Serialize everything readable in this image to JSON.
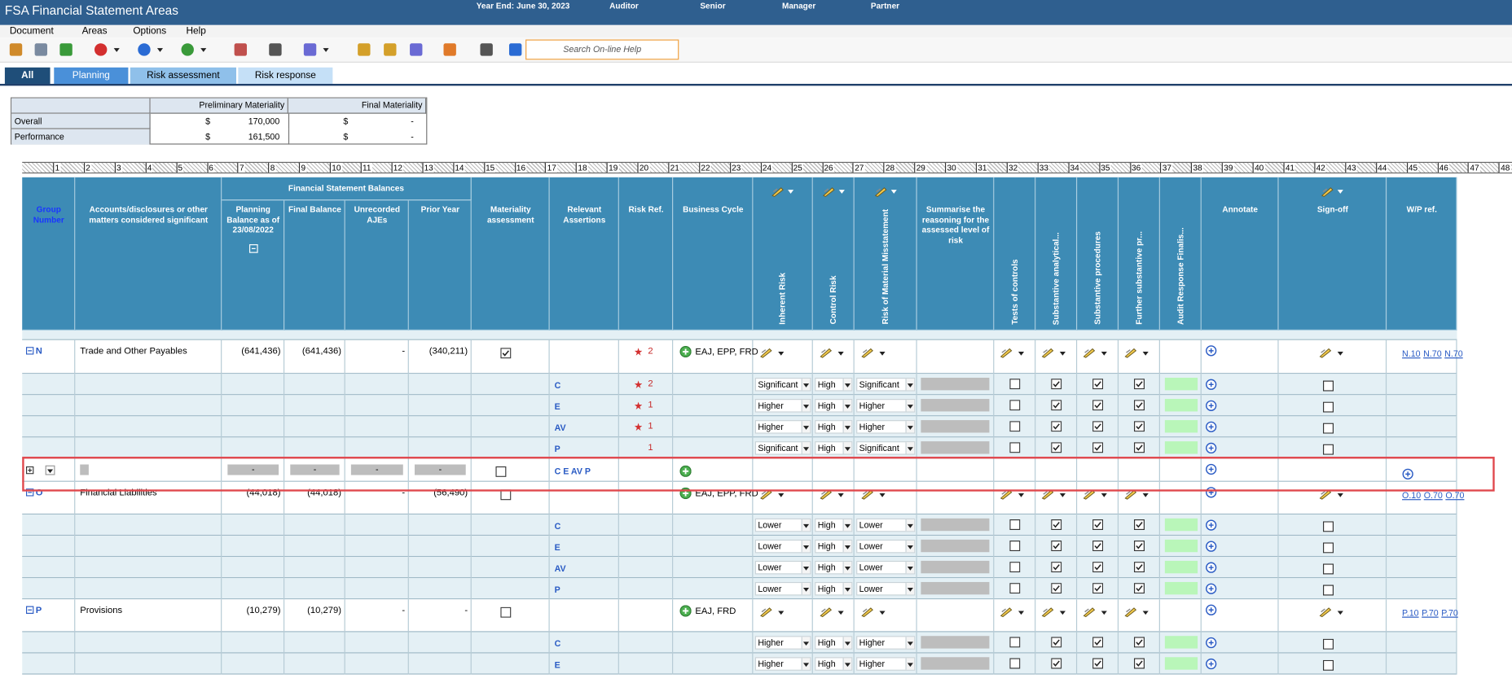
{
  "header": {
    "title": "FSA Financial Statement Areas",
    "fields": [
      "Year End: June 30, 2023",
      "Auditor",
      "Senior",
      "Manager",
      "Partner"
    ]
  },
  "menu": [
    "Document",
    "Areas",
    "Options",
    "Help"
  ],
  "search_placeholder": "Search On-line Help",
  "tabs": [
    "All",
    "Planning",
    "Risk assessment",
    "Risk response"
  ],
  "materiality": {
    "columns": [
      "Preliminary Materiality",
      "Final Materiality"
    ],
    "rows": [
      {
        "label": "Overall",
        "preliminary": [
          "$",
          "170,000"
        ],
        "final": [
          "$",
          "-"
        ]
      },
      {
        "label": "Performance",
        "preliminary": [
          "$",
          "161,500"
        ],
        "final": [
          "$",
          "-"
        ]
      }
    ]
  },
  "ruler": [
    1,
    2,
    3,
    4,
    5,
    6,
    7,
    8,
    9,
    10,
    11,
    12,
    13,
    14,
    15,
    16,
    17,
    18,
    19,
    20,
    21,
    22,
    23,
    24,
    25,
    26,
    27,
    28,
    29,
    30,
    31,
    32,
    33,
    34,
    35,
    36,
    37,
    38,
    39,
    40,
    41,
    42,
    43,
    44,
    45,
    46,
    47,
    48
  ],
  "table": {
    "group_header": "Financial Statement Balances",
    "columns": [
      {
        "label": "Group Number"
      },
      {
        "label": "Accounts/disclosures or other matters considered significant"
      },
      {
        "label": "Planning Balance as of 23/08/2022"
      },
      {
        "label": "Final Balance"
      },
      {
        "label": "Unrecorded AJEs"
      },
      {
        "label": "Prior Year"
      },
      {
        "label": "Materiality assessment"
      },
      {
        "label": "Relevant Assertions"
      },
      {
        "label": "Risk Ref."
      },
      {
        "label": "Business Cycle"
      },
      {
        "label": "Inherent Risk",
        "vertical": true
      },
      {
        "label": "Control Risk",
        "vertical": true
      },
      {
        "label": "Risk of Material Misstatement",
        "vertical": true
      },
      {
        "label": "Summarise the reasoning for the assessed level of risk"
      },
      {
        "label": "Tests of controls",
        "vertical": true
      },
      {
        "label": "Substantive analytical...",
        "vertical": true
      },
      {
        "label": "Substantive procedures",
        "vertical": true
      },
      {
        "label": "Further substantive pr...",
        "vertical": true
      },
      {
        "label": "Audit Response Finalis...",
        "vertical": true
      },
      {
        "label": "Annotate"
      },
      {
        "label": "Sign-off"
      },
      {
        "label": "W/P ref."
      }
    ],
    "rows": [
      {
        "kind": "group",
        "code": "N",
        "name": "Trade and Other Payables",
        "balances": [
          "(641,436)",
          "(641,436)",
          "-",
          "(340,211)"
        ],
        "materiality": true,
        "risk_ref": "2",
        "star": true,
        "cycle": "EAJ, EPP, FRD",
        "wp_refs": [
          "N.10",
          "N.70",
          "N.70"
        ]
      },
      {
        "kind": "assertion",
        "assertion": "C",
        "risk_ref": "2",
        "star": true,
        "risks": [
          "Significant",
          "High",
          "Significant"
        ],
        "responses": [
          false,
          true,
          true,
          true
        ],
        "signoff": false
      },
      {
        "kind": "assertion",
        "assertion": "E",
        "risk_ref": "1",
        "star": true,
        "risks": [
          "Higher",
          "High",
          "Higher"
        ],
        "responses": [
          false,
          true,
          true,
          true
        ],
        "signoff": false
      },
      {
        "kind": "assertion",
        "assertion": "AV",
        "risk_ref": "1",
        "star": true,
        "risks": [
          "Higher",
          "High",
          "Higher"
        ],
        "responses": [
          false,
          true,
          true,
          true
        ],
        "signoff": false
      },
      {
        "kind": "assertion",
        "assertion": "P",
        "risk_ref": "1",
        "star": false,
        "risks": [
          "Significant",
          "High",
          "Significant"
        ],
        "responses": [
          false,
          true,
          true,
          true
        ],
        "signoff": false
      },
      {
        "kind": "blank",
        "assertions": "C E AV P",
        "balances": [
          "-",
          "-",
          "-",
          "-"
        ],
        "materiality": false
      },
      {
        "kind": "group",
        "code": "O",
        "name": "Financial Liabilities",
        "balances": [
          "(44,018)",
          "(44,018)",
          "-",
          "(56,490)"
        ],
        "materiality": false,
        "cycle": "EAJ, EPP, FRD",
        "wp_refs": [
          "O.10",
          "O.70",
          "O.70"
        ]
      },
      {
        "kind": "assertion",
        "assertion": "C",
        "risks": [
          "Lower",
          "High",
          "Lower"
        ],
        "responses": [
          false,
          true,
          true,
          true
        ],
        "signoff": false
      },
      {
        "kind": "assertion",
        "assertion": "E",
        "risks": [
          "Lower",
          "High",
          "Lower"
        ],
        "responses": [
          false,
          true,
          true,
          true
        ],
        "signoff": false
      },
      {
        "kind": "assertion",
        "assertion": "AV",
        "risks": [
          "Lower",
          "High",
          "Lower"
        ],
        "responses": [
          false,
          true,
          true,
          true
        ],
        "signoff": false
      },
      {
        "kind": "assertion",
        "assertion": "P",
        "risks": [
          "Lower",
          "High",
          "Lower"
        ],
        "responses": [
          false,
          true,
          true,
          true
        ],
        "signoff": false
      },
      {
        "kind": "group",
        "code": "P",
        "name": "Provisions",
        "balances": [
          "(10,279)",
          "(10,279)",
          "-",
          "-"
        ],
        "materiality": false,
        "cycle": "EAJ, FRD",
        "wp_refs": [
          "P.10",
          "P.70",
          "P.70"
        ]
      },
      {
        "kind": "assertion",
        "assertion": "C",
        "risks": [
          "Higher",
          "High",
          "Higher"
        ],
        "responses": [
          false,
          true,
          true,
          true
        ],
        "signoff": false
      },
      {
        "kind": "assertion",
        "assertion": "E",
        "risks": [
          "Higher",
          "High",
          "Higher"
        ],
        "responses": [
          false,
          true,
          true,
          true
        ],
        "signoff": false
      }
    ]
  }
}
